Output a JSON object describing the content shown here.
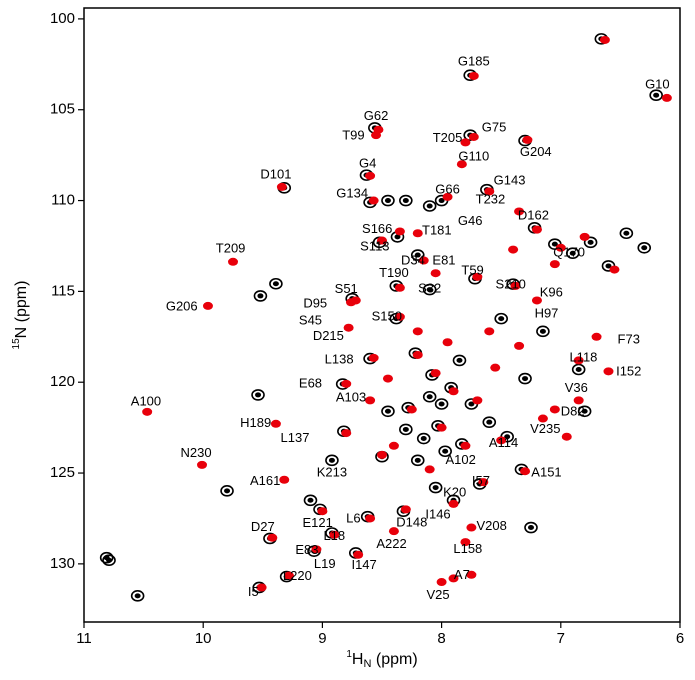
{
  "chart_data": {
    "type": "scatter",
    "x_label": [
      "1",
      "H",
      "N",
      " (ppm)"
    ],
    "y_label": [
      "15",
      "N",
      " (ppm)"
    ],
    "xlim": [
      11,
      6
    ],
    "ylim": [
      99.4,
      133.2
    ],
    "xticks": [
      11,
      10,
      9,
      8,
      7,
      6
    ],
    "yticks": [
      100,
      105,
      110,
      115,
      120,
      125,
      130
    ],
    "series": [
      {
        "color": "#000000",
        "x": [
          6.2,
          6.66,
          7.76,
          8.56,
          7.76,
          7.3,
          8.63,
          9.32,
          8.6,
          8.45,
          8.3,
          8.1,
          9.52,
          9.39,
          9.54,
          9.8,
          10.55,
          10.81,
          10.79,
          9.44,
          9.53,
          9.3,
          8.83,
          8.6,
          8.75,
          8.52,
          8.37,
          8.0,
          7.62,
          7.22,
          7.05,
          6.9,
          6.75,
          6.6,
          7.4,
          7.72,
          8.1,
          8.38,
          8.38,
          8.22,
          8.08,
          7.92,
          8.28,
          8.03,
          8.15,
          7.97,
          7.83,
          8.1,
          7.75,
          8.45,
          8.3,
          7.6,
          7.33,
          7.68,
          8.32,
          8.62,
          9.02,
          8.92,
          9.07,
          8.72,
          7.9,
          8.05,
          8.5,
          8.82,
          7.5,
          7.15,
          7.3,
          6.85,
          6.45,
          6.3,
          8.2,
          7.85,
          8.0,
          8.2,
          7.45,
          8.92,
          9.1,
          7.25,
          6.8
        ],
        "y": [
          104.2,
          101.1,
          103.1,
          106.0,
          106.4,
          106.7,
          108.6,
          109.3,
          110.1,
          110.0,
          110.0,
          110.3,
          115.25,
          114.58,
          120.7,
          125.98,
          131.76,
          129.66,
          129.8,
          128.6,
          131.3,
          130.7,
          120.1,
          118.7,
          115.4,
          112.3,
          112.0,
          110.0,
          109.4,
          111.5,
          112.4,
          112.9,
          112.3,
          113.6,
          114.6,
          114.3,
          114.9,
          114.7,
          116.5,
          118.4,
          119.6,
          120.3,
          121.4,
          122.4,
          123.1,
          123.8,
          123.4,
          120.8,
          121.2,
          121.6,
          122.6,
          122.2,
          124.8,
          125.6,
          127.1,
          127.4,
          127.0,
          128.3,
          129.3,
          129.4,
          126.5,
          125.8,
          124.1,
          122.7,
          116.5,
          117.2,
          119.8,
          119.3,
          111.8,
          112.6,
          113.0,
          118.8,
          121.2,
          124.3,
          123.0,
          124.3,
          126.5,
          128.0,
          121.6
        ]
      },
      {
        "color": "#e8000b",
        "x": [
          6.11,
          6.63,
          7.73,
          8.53,
          8.55,
          7.73,
          7.8,
          7.83,
          7.28,
          8.6,
          9.34,
          8.57,
          9.75,
          9.96,
          10.47,
          10.01,
          9.32,
          9.42,
          9.51,
          9.28,
          9.39,
          8.8,
          8.57,
          8.72,
          8.76,
          8.5,
          8.35,
          8.2,
          7.95,
          7.6,
          7.35,
          7.2,
          7.0,
          6.8,
          6.55,
          6.7,
          6.6,
          6.85,
          6.85,
          7.15,
          7.2,
          7.38,
          7.7,
          8.05,
          8.15,
          8.35,
          8.35,
          8.78,
          8.2,
          8.05,
          7.9,
          7.7,
          8.25,
          8.0,
          7.8,
          7.5,
          7.3,
          7.65,
          7.9,
          8.3,
          8.6,
          9.0,
          8.9,
          9.05,
          8.7,
          8.4,
          7.75,
          7.8,
          8.0,
          7.9,
          7.75,
          8.5,
          8.8,
          8.4,
          8.1,
          7.55,
          7.35,
          7.6,
          7.95,
          8.6,
          7.05,
          6.95,
          8.45,
          8.2,
          7.4,
          7.05
        ],
        "y": [
          104.35,
          101.16,
          103.14,
          106.1,
          106.4,
          106.5,
          106.8,
          108.0,
          106.66,
          108.64,
          109.25,
          110.0,
          113.37,
          115.8,
          121.63,
          124.55,
          125.37,
          128.56,
          131.3,
          130.65,
          122.29,
          120.09,
          118.66,
          115.5,
          115.6,
          112.2,
          111.7,
          111.8,
          109.8,
          109.5,
          110.6,
          111.6,
          112.6,
          112.0,
          113.8,
          117.5,
          119.4,
          118.8,
          121.0,
          122.0,
          115.5,
          114.7,
          114.2,
          114.0,
          113.3,
          114.8,
          116.4,
          117.0,
          118.5,
          119.5,
          120.5,
          121.0,
          121.5,
          122.5,
          123.5,
          123.2,
          124.9,
          125.5,
          126.7,
          127.0,
          127.5,
          127.1,
          128.4,
          129.2,
          129.5,
          128.2,
          128.0,
          128.8,
          131.0,
          130.8,
          130.6,
          124.0,
          122.8,
          123.5,
          124.8,
          119.2,
          118.0,
          117.2,
          117.8,
          121.0,
          121.5,
          123.0,
          119.8,
          117.2,
          112.7,
          113.5
        ]
      }
    ],
    "annotations": [
      {
        "text": "G185",
        "x": 7.73,
        "y": 102.37
      },
      {
        "text": "G10",
        "x": 6.19,
        "y": 103.63
      },
      {
        "text": "G62",
        "x": 8.55,
        "y": 105.39
      },
      {
        "text": "G75",
        "x": 7.56,
        "y": 106.0
      },
      {
        "text": "T99",
        "x": 8.74,
        "y": 106.44
      },
      {
        "text": "T205",
        "x": 7.95,
        "y": 106.6
      },
      {
        "text": "G110",
        "x": 7.73,
        "y": 107.6
      },
      {
        "text": "G204",
        "x": 7.21,
        "y": 107.37
      },
      {
        "text": "G4",
        "x": 8.62,
        "y": 107.98
      },
      {
        "text": "D101",
        "x": 9.39,
        "y": 108.59
      },
      {
        "text": "G134",
        "x": 8.75,
        "y": 109.63
      },
      {
        "text": "G66",
        "x": 7.95,
        "y": 109.41
      },
      {
        "text": "G143",
        "x": 7.43,
        "y": 108.92
      },
      {
        "text": "T232",
        "x": 7.59,
        "y": 109.96
      },
      {
        "text": "G46",
        "x": 7.76,
        "y": 111.17
      },
      {
        "text": "D162",
        "x": 7.23,
        "y": 110.84
      },
      {
        "text": "S166",
        "x": 8.54,
        "y": 111.61
      },
      {
        "text": "T181",
        "x": 8.04,
        "y": 111.67
      },
      {
        "text": "S113",
        "x": 8.56,
        "y": 112.55
      },
      {
        "text": "Q170",
        "x": 6.93,
        "y": 112.88
      },
      {
        "text": "D34",
        "x": 8.24,
        "y": 113.32
      },
      {
        "text": "E81",
        "x": 7.98,
        "y": 113.32
      },
      {
        "text": "T209",
        "x": 9.77,
        "y": 112.66
      },
      {
        "text": "T59",
        "x": 7.74,
        "y": 113.87
      },
      {
        "text": "T190",
        "x": 8.4,
        "y": 114.03
      },
      {
        "text": "S210",
        "x": 7.42,
        "y": 114.64
      },
      {
        "text": "S51",
        "x": 8.8,
        "y": 114.91
      },
      {
        "text": "S32",
        "x": 8.1,
        "y": 114.86
      },
      {
        "text": "K96",
        "x": 7.08,
        "y": 115.08
      },
      {
        "text": "G206",
        "x": 10.18,
        "y": 115.85
      },
      {
        "text": "D95",
        "x": 9.06,
        "y": 115.69
      },
      {
        "text": "S45",
        "x": 9.1,
        "y": 116.62
      },
      {
        "text": "S150",
        "x": 8.46,
        "y": 116.4
      },
      {
        "text": "H97",
        "x": 7.12,
        "y": 116.24
      },
      {
        "text": "D215",
        "x": 8.95,
        "y": 117.5
      },
      {
        "text": "F73",
        "x": 6.43,
        "y": 117.67
      },
      {
        "text": "L138",
        "x": 8.86,
        "y": 118.77
      },
      {
        "text": "L118",
        "x": 6.81,
        "y": 118.66
      },
      {
        "text": "I152",
        "x": 6.43,
        "y": 119.43
      },
      {
        "text": "E68",
        "x": 9.1,
        "y": 120.09
      },
      {
        "text": "A100",
        "x": 10.48,
        "y": 121.08
      },
      {
        "text": "A103",
        "x": 8.76,
        "y": 120.86
      },
      {
        "text": "V36",
        "x": 6.87,
        "y": 120.36
      },
      {
        "text": "D82",
        "x": 6.9,
        "y": 121.63
      },
      {
        "text": "H189",
        "x": 9.56,
        "y": 122.29
      },
      {
        "text": "V235",
        "x": 7.13,
        "y": 122.62
      },
      {
        "text": "L137",
        "x": 9.23,
        "y": 123.11
      },
      {
        "text": "A114",
        "x": 7.48,
        "y": 123.39
      },
      {
        "text": "A102",
        "x": 7.84,
        "y": 124.3
      },
      {
        "text": "N230",
        "x": 10.06,
        "y": 123.94
      },
      {
        "text": "K213",
        "x": 8.92,
        "y": 124.99
      },
      {
        "text": "A151",
        "x": 7.12,
        "y": 124.99
      },
      {
        "text": "A161",
        "x": 9.48,
        "y": 125.48
      },
      {
        "text": "I57",
        "x": 7.67,
        "y": 125.48
      },
      {
        "text": "K20",
        "x": 7.89,
        "y": 126.09
      },
      {
        "text": "I146",
        "x": 8.03,
        "y": 127.3
      },
      {
        "text": "L6",
        "x": 8.74,
        "y": 127.52
      },
      {
        "text": "E121",
        "x": 9.04,
        "y": 127.79
      },
      {
        "text": "D148",
        "x": 8.25,
        "y": 127.74
      },
      {
        "text": "V208",
        "x": 7.58,
        "y": 127.96
      },
      {
        "text": "D27",
        "x": 9.5,
        "y": 128.01
      },
      {
        "text": "L18",
        "x": 8.9,
        "y": 128.5
      },
      {
        "text": "A222",
        "x": 8.42,
        "y": 128.95
      },
      {
        "text": "L158",
        "x": 7.78,
        "y": 129.22
      },
      {
        "text": "E83",
        "x": 9.13,
        "y": 129.28
      },
      {
        "text": "L19",
        "x": 8.98,
        "y": 130.05
      },
      {
        "text": "I147",
        "x": 8.65,
        "y": 130.1
      },
      {
        "text": "L220",
        "x": 9.21,
        "y": 130.71
      },
      {
        "text": "A7",
        "x": 7.83,
        "y": 130.65
      },
      {
        "text": "I5",
        "x": 9.58,
        "y": 131.59
      },
      {
        "text": "V25",
        "x": 8.03,
        "y": 131.75
      }
    ]
  }
}
